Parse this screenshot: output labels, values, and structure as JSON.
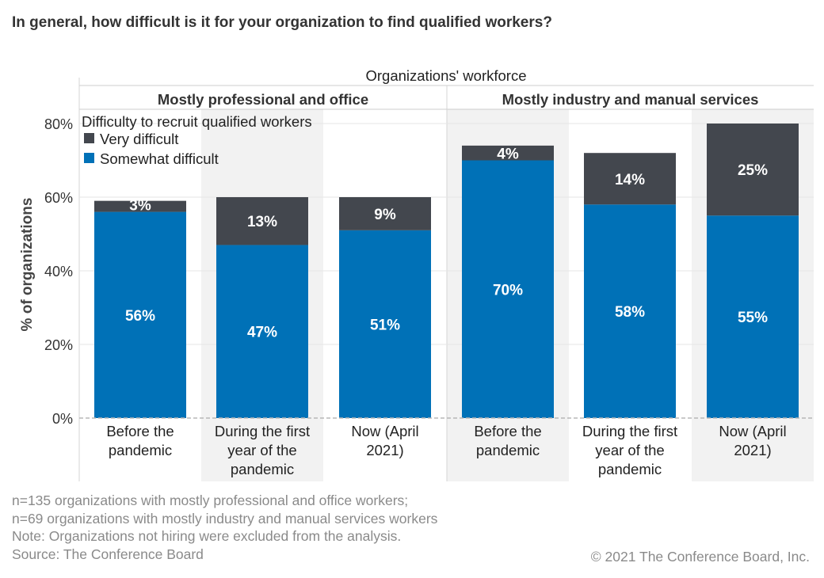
{
  "page": {
    "title": "In general, how difficult is it for your organization to find qualified workers?",
    "footnotes": [
      "n=135 organizations with mostly professional and office workers;",
      "n=69 organizations with mostly industry and manual services workers",
      "Note: Organizations not hiring were excluded from the analysis.",
      "Source: The Conference Board"
    ],
    "copyright": "© 2021 The Conference Board, Inc."
  },
  "colors": {
    "very_difficult": "#43474e",
    "somewhat_difficult": "#0071b7",
    "band_shade": "#f2f2f2"
  },
  "chart_data": {
    "type": "bar",
    "stacked": true,
    "column_header": "Organizations' workforce",
    "groups": [
      "Mostly professional and office",
      "Mostly industry and manual services"
    ],
    "categories": [
      [
        "Before the",
        "pandemic"
      ],
      [
        "During the first",
        "year of the",
        "pandemic"
      ],
      [
        "Now (April",
        "2021)"
      ]
    ],
    "ylabel": "% of organizations",
    "ylim": [
      0,
      80
    ],
    "yticks": [
      0,
      20,
      40,
      60,
      80
    ],
    "ytick_labels": [
      "0%",
      "20%",
      "40%",
      "60%",
      "80%"
    ],
    "legend": {
      "title": "Difficulty to recruit qualified workers",
      "position": "top-left",
      "items": [
        "Very difficult",
        "Somewhat difficult"
      ]
    },
    "series": [
      {
        "name": "Somewhat difficult",
        "values": [
          [
            56,
            47,
            51
          ],
          [
            70,
            58,
            55
          ]
        ],
        "labels": [
          [
            "56%",
            "47%",
            "51%"
          ],
          [
            "70%",
            "58%",
            "55%"
          ]
        ]
      },
      {
        "name": "Very difficult",
        "values": [
          [
            3,
            13,
            9
          ],
          [
            4,
            14,
            25
          ]
        ],
        "labels": [
          [
            "3%",
            "13%",
            "9%"
          ],
          [
            "4%",
            "14%",
            "25%"
          ]
        ]
      }
    ]
  }
}
